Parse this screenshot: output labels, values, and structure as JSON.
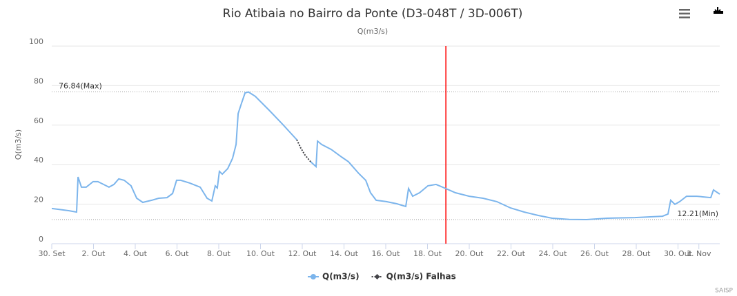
{
  "chart_data": {
    "type": "line",
    "title": "Rio Atibaia no Bairro da Ponte (D3-048T / 3D-006T)",
    "subtitle": "Q(m3/s)",
    "y_label": "Q(m3/s)",
    "credits": "SAISP",
    "x": [
      0,
      0.33,
      0.83,
      1.19,
      1.26,
      1.42,
      1.65,
      1.98,
      2.21,
      2.48,
      2.74,
      2.98,
      3.21,
      3.47,
      3.8,
      4.07,
      4.36,
      4.79,
      5.12,
      5.52,
      5.79,
      5.98,
      6.18,
      6.61,
      7.11,
      7.44,
      7.67,
      7.83,
      7.93,
      8.03,
      8.17,
      8.43,
      8.66,
      8.83,
      8.93,
      9.09,
      9.26,
      9.42,
      9.75,
      10.41,
      11.07,
      11.74,
      11.93,
      12.13,
      12.4,
      12.66,
      12.73,
      12.93,
      13.39,
      13.88,
      14.21,
      14.71,
      15.04,
      15.27,
      15.54,
      16.03,
      16.53,
      16.96,
      17.09,
      17.29,
      17.62,
      18.02,
      18.41,
      18.88,
      19.34,
      20,
      20.66,
      21.32,
      21.98,
      22.64,
      23.31,
      23.97,
      24.79,
      25.62,
      26.61,
      27.93,
      29.26,
      29.52,
      29.65,
      29.85,
      30.08,
      30.41,
      30.91,
      31.57,
      31.7,
      32
    ],
    "series": [
      {
        "name": "Q(m3/s)",
        "color": "#7cb5ec",
        "values": [
          17.8,
          17.4,
          16.7,
          16,
          33.8,
          28.6,
          28.6,
          31.4,
          31.4,
          30,
          28.6,
          30,
          32.8,
          32.1,
          29.3,
          23,
          20.9,
          22,
          23,
          23.3,
          25.4,
          32.1,
          32.1,
          30.7,
          28.6,
          23,
          21.6,
          29.3,
          28.2,
          36.6,
          35.2,
          38,
          43.2,
          50.2,
          65.9,
          71.1,
          76.3,
          76.8,
          74.6,
          67.6,
          60.3,
          52.6,
          null,
          null,
          41.5,
          39,
          51.9,
          50.2,
          47.7,
          43.9,
          41.5,
          35.5,
          32.1,
          25.8,
          22,
          21.3,
          20.2,
          18.8,
          27.9,
          24,
          25.8,
          29.3,
          30,
          27.9,
          25.8,
          24,
          23,
          21.3,
          18.1,
          16,
          14.3,
          12.9,
          12.3,
          12.2,
          12.9,
          13.2,
          13.9,
          15,
          22,
          19.9,
          21.3,
          24,
          24,
          23.3,
          27.2,
          25.1
        ]
      },
      {
        "name": "Q(m3/s) Falhas",
        "color": "#434348",
        "values": [
          null,
          null,
          null,
          null,
          null,
          null,
          null,
          null,
          null,
          null,
          null,
          null,
          null,
          null,
          null,
          null,
          null,
          null,
          null,
          null,
          null,
          null,
          null,
          null,
          null,
          null,
          null,
          null,
          null,
          null,
          null,
          null,
          null,
          null,
          null,
          null,
          null,
          null,
          null,
          null,
          null,
          52.6,
          48.4,
          44.9,
          41.5,
          null,
          null,
          null,
          null,
          null,
          null,
          null,
          null,
          null,
          null,
          null,
          null,
          null,
          null,
          null,
          null,
          null,
          null,
          null,
          null,
          null,
          null,
          null,
          null,
          null,
          null,
          null,
          null,
          null,
          null,
          null,
          null,
          null,
          null,
          null,
          null,
          null,
          null,
          null,
          null,
          null
        ]
      }
    ],
    "xlim": [
      0,
      32
    ],
    "xticks": [
      {
        "value": 0,
        "label": "30. Set"
      },
      {
        "value": 2,
        "label": "2. Out"
      },
      {
        "value": 4,
        "label": "4. Out"
      },
      {
        "value": 6,
        "label": "6. Out"
      },
      {
        "value": 8,
        "label": "8. Out"
      },
      {
        "value": 10,
        "label": "10. Out"
      },
      {
        "value": 12,
        "label": "12. Out"
      },
      {
        "value": 14,
        "label": "14. Out"
      },
      {
        "value": 16,
        "label": "16. Out"
      },
      {
        "value": 18,
        "label": "18. Out"
      },
      {
        "value": 20,
        "label": "20. Out"
      },
      {
        "value": 22,
        "label": "22. Out"
      },
      {
        "value": 24,
        "label": "24. Out"
      },
      {
        "value": 26,
        "label": "26. Out"
      },
      {
        "value": 28,
        "label": "28. Out"
      },
      {
        "value": 30,
        "label": "30. Out"
      },
      {
        "value": 31,
        "label": "1. Nov"
      }
    ],
    "ylim": [
      0,
      100
    ],
    "yticks": [
      0,
      20,
      40,
      60,
      80,
      100
    ],
    "grid": true,
    "plot_lines": [
      {
        "value": 76.84,
        "label": "76.84(Max)",
        "align": "left"
      },
      {
        "value": 12.21,
        "label": "12.21(Min)",
        "align": "right"
      }
    ],
    "x_plot_line": {
      "value": 18.88,
      "color": "#ff0000"
    }
  }
}
